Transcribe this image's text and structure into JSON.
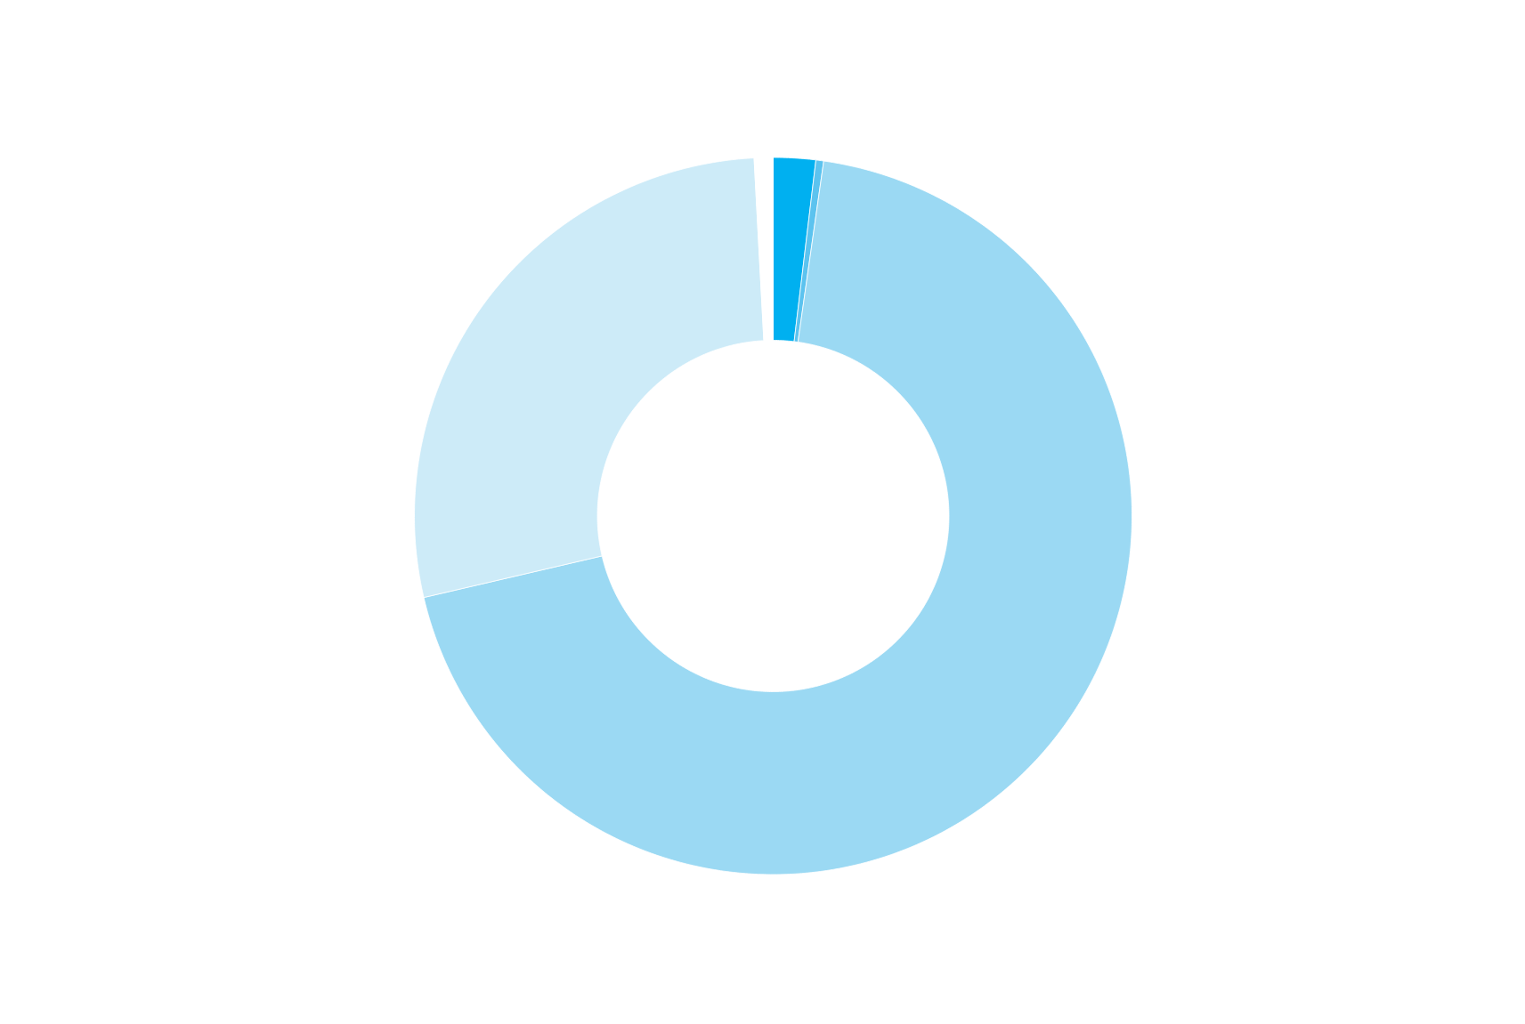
{
  "chart_data": {
    "type": "donut",
    "categories": [
      null,
      null,
      null,
      null,
      null
    ],
    "values": [
      1.9,
      0.35,
      69.1,
      27.8,
      0.85
    ],
    "colors": [
      "#00b0f0",
      "#5cc3ef",
      "#9bd9f3",
      "#cdebf8",
      "#ffffff"
    ]
  }
}
